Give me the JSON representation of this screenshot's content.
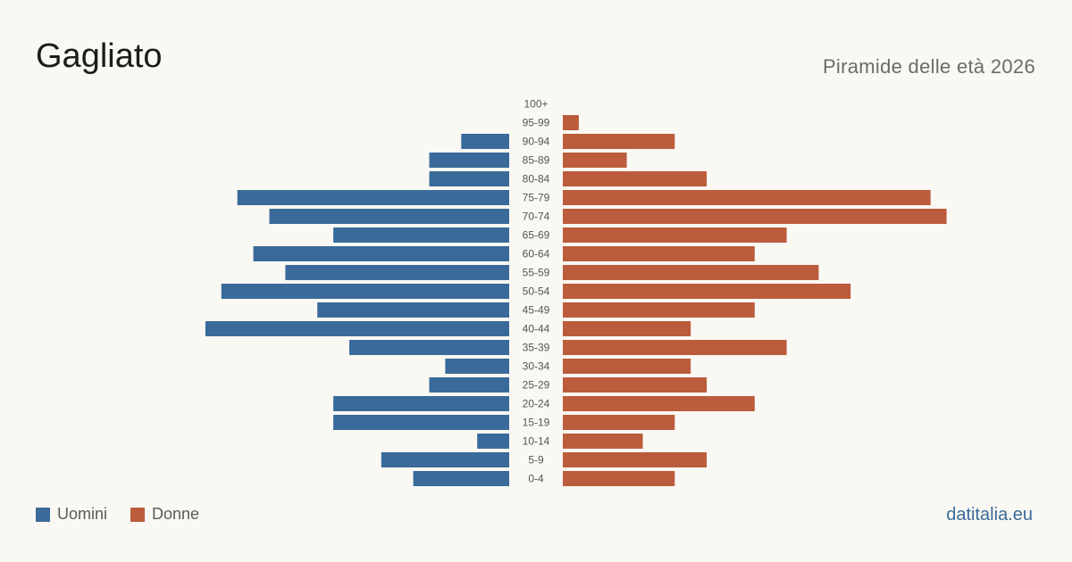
{
  "header": {
    "title": "Gagliato",
    "subtitle": "Piramide delle età 2026"
  },
  "legend": {
    "men": "Uomini",
    "women": "Donne"
  },
  "site": "datitalia.eu",
  "colors": {
    "men": "#3a6a9a",
    "women": "#bb5c3c",
    "background": "#faf8f3",
    "tick": "#555555"
  },
  "chart_data": {
    "type": "bar",
    "orientation": "horizontal-pyramid",
    "categories": [
      "100+",
      "95-99",
      "90-94",
      "85-89",
      "80-84",
      "75-79",
      "70-74",
      "65-69",
      "60-64",
      "55-59",
      "50-54",
      "45-49",
      "40-44",
      "35-39",
      "30-34",
      "25-29",
      "20-24",
      "15-19",
      "10-14",
      "5-9",
      "0-4"
    ],
    "series": [
      {
        "name": "Uomini",
        "values": [
          0,
          0,
          3,
          5,
          5,
          17,
          15,
          11,
          16,
          14,
          18,
          12,
          19,
          10,
          4,
          5,
          11,
          11,
          2,
          8,
          6
        ]
      },
      {
        "name": "Donne",
        "values": [
          0,
          1,
          7,
          4,
          9,
          23,
          24,
          14,
          12,
          16,
          18,
          12,
          8,
          14,
          8,
          9,
          12,
          7,
          5,
          9,
          7
        ]
      }
    ]
  }
}
